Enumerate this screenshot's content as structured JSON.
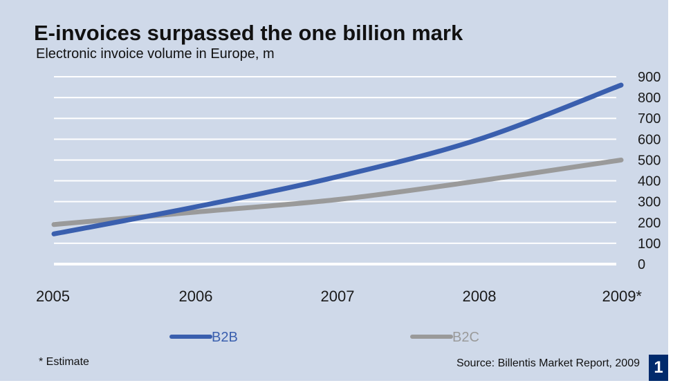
{
  "header": {
    "title": "E-invoices surpassed the one billion mark",
    "subtitle": "Electronic invoice volume in Europe, m"
  },
  "footer": {
    "footnote": "* Estimate",
    "source": "Source: Billentis Market Report, 2009",
    "badge": "1"
  },
  "colors": {
    "background": "#cfd9e9",
    "gridline": "#ffffff",
    "b2b": "#3a5fae",
    "b2c": "#9a9a9a",
    "badge": "#002a6c"
  },
  "chart_data": {
    "type": "line",
    "title": "E-invoices surpassed the one billion mark",
    "subtitle": "Electronic invoice volume in Europe, m",
    "categories": [
      "2005",
      "2006",
      "2007",
      "2008",
      "2009*"
    ],
    "series": [
      {
        "name": "B2B",
        "values": [
          145,
          275,
          420,
          600,
          860
        ],
        "color": "#3a5fae"
      },
      {
        "name": "B2C",
        "values": [
          190,
          250,
          310,
          400,
          500
        ],
        "color": "#9a9a9a"
      }
    ],
    "ylim": [
      0,
      900
    ],
    "yticks": [
      0,
      100,
      200,
      300,
      400,
      500,
      600,
      700,
      800,
      900
    ],
    "y_axis_side": "right",
    "grid": true,
    "legend": "bottom",
    "xlabel": "",
    "ylabel": ""
  }
}
